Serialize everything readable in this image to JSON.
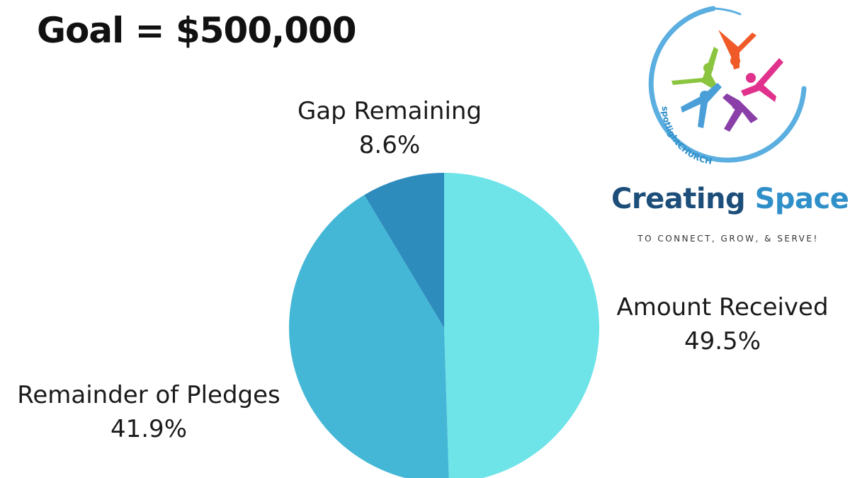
{
  "header": {
    "goal_text": "Goal = $500,000"
  },
  "chart_data": {
    "type": "pie",
    "title": "Goal = $500,000",
    "slices": [
      {
        "label": "Amount Received",
        "value": 49.5,
        "display": "49.5%",
        "color": "#6ee3e8"
      },
      {
        "label": "Remainder of Pledges",
        "value": 41.9,
        "display": "41.9%",
        "color": "#45b7d6"
      },
      {
        "label": "Gap Remaining",
        "value": 8.6,
        "display": "8.6%",
        "color": "#2e8cbd"
      }
    ],
    "start": "12 o'clock",
    "direction": "clockwise"
  },
  "branding": {
    "logo_text": "spotlightCHURCH",
    "title_part1": "Creating",
    "title_part2": "Space",
    "tagline": "TO CONNECT, GROW, & SERVE!",
    "colors": {
      "ring": "#5aaee0",
      "figures": [
        "#f05a28",
        "#e0328c",
        "#8a3fa8",
        "#8bc53f",
        "#4a9fd8"
      ],
      "title_dark": "#1d4e7a",
      "title_light": "#2f8fc9"
    }
  }
}
